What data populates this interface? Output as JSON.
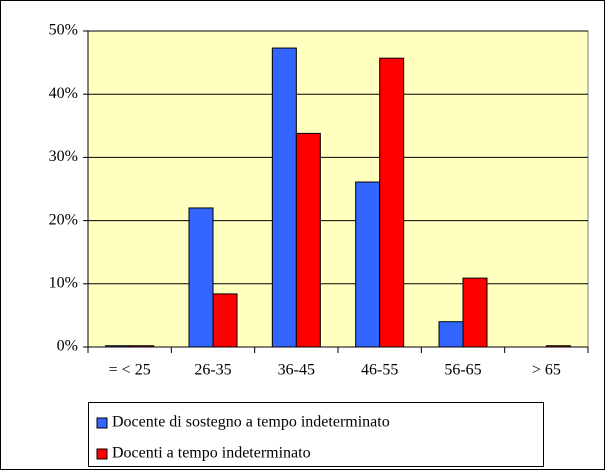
{
  "chart_data": {
    "type": "bar",
    "categories": [
      "= < 25",
      "26-35",
      "36-45",
      "46-55",
      "56-65",
      "> 65"
    ],
    "series": [
      {
        "name": "Docente di sostegno a tempo indeterminato",
        "color": "#3366ff",
        "values": [
          0.2,
          22,
          47.3,
          26.1,
          4,
          0
        ]
      },
      {
        "name": "Docenti a tempo indeterminato",
        "color": "#ff0000",
        "values": [
          0.2,
          8.4,
          33.8,
          45.7,
          10.9,
          0.2
        ]
      }
    ],
    "ylim": [
      0,
      50
    ],
    "yticks": [
      {
        "value": 0,
        "label": "0%"
      },
      {
        "value": 10,
        "label": "10%"
      },
      {
        "value": 20,
        "label": "20%"
      },
      {
        "value": 30,
        "label": "30%"
      },
      {
        "value": 40,
        "label": "40%"
      },
      {
        "value": 50,
        "label": "50%"
      }
    ],
    "grid": true,
    "background": "#ffffc0",
    "legend": "bottom"
  }
}
